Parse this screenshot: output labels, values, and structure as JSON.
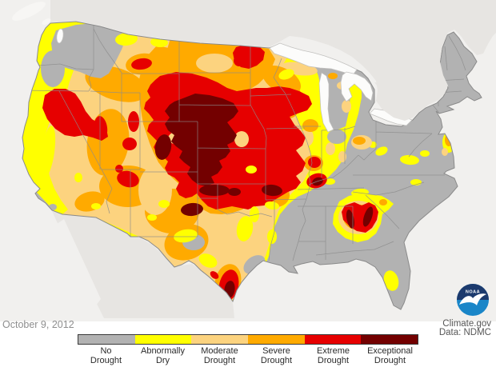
{
  "header": {
    "date": "October 9, 2012"
  },
  "credits": {
    "source": "Climate.gov",
    "data": "Data: NDMC",
    "noaa": "NOAA"
  },
  "legend": {
    "items": [
      {
        "line1": "No",
        "line2": "Drought",
        "color": "#b2b2b2"
      },
      {
        "line1": "Abnormally",
        "line2": "Dry",
        "color": "#ffff00"
      },
      {
        "line1": "Moderate",
        "line2": "Drought",
        "color": "#fcd37f"
      },
      {
        "line1": "Severe",
        "line2": "Drought",
        "color": "#ffaa00"
      },
      {
        "line1": "Extreme",
        "line2": "Drought",
        "color": "#e60000"
      },
      {
        "line1": "Exceptional",
        "line2": "Drought",
        "color": "#730000"
      }
    ]
  },
  "colors": {
    "no_drought": "#b2b2b2",
    "d0": "#ffff00",
    "d1": "#fcd37f",
    "d2": "#ffaa00",
    "d3": "#e60000",
    "d4": "#730000",
    "ocean": "#f1f0ee",
    "foreign_land": "#e7e5e2",
    "lakes": "#fcfcfb",
    "state_border": "#8c8c8c",
    "coast": "#8a8a8a",
    "noaa_dark": "#1c3a6d",
    "noaa_blue": "#1a86c8"
  }
}
